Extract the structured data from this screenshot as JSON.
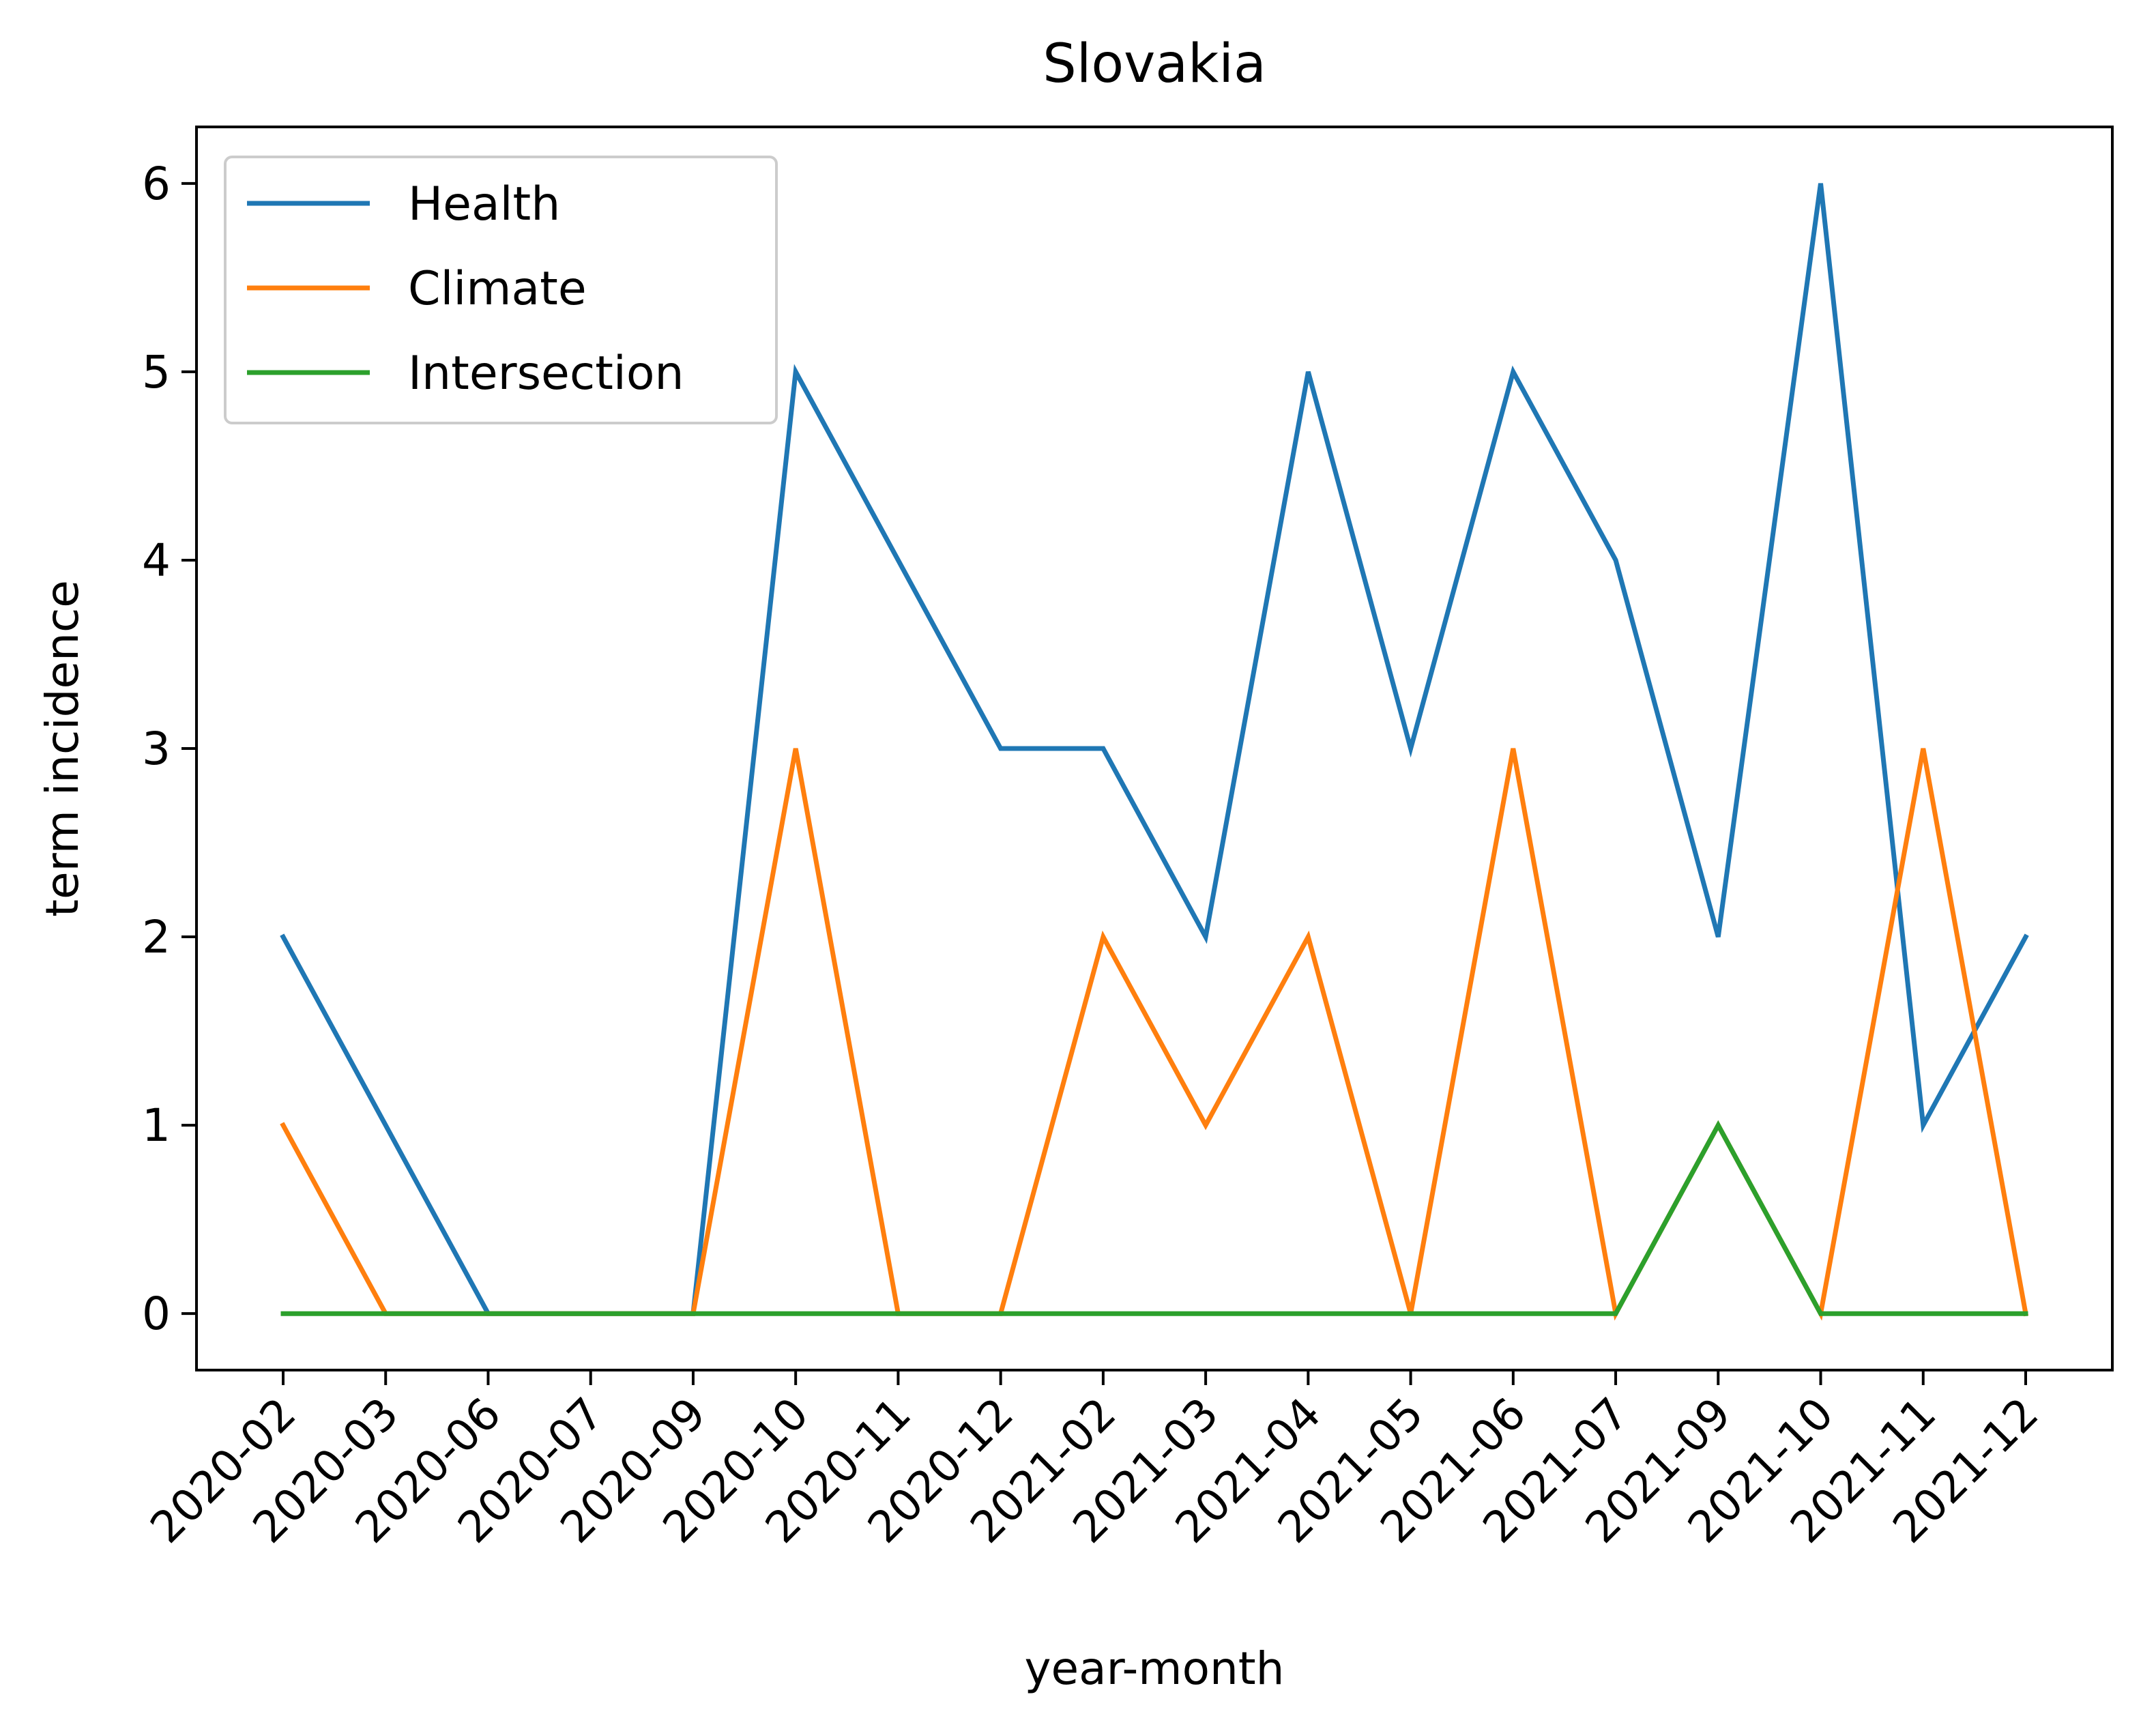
{
  "chart_data": {
    "type": "line",
    "title": "Slovakia",
    "xlabel": "year-month",
    "ylabel": "term incidence",
    "categories": [
      "2020-02",
      "2020-03",
      "2020-06",
      "2020-07",
      "2020-09",
      "2020-10",
      "2020-11",
      "2020-12",
      "2021-02",
      "2021-03",
      "2021-04",
      "2021-05",
      "2021-06",
      "2021-07",
      "2021-09",
      "2021-10",
      "2021-11",
      "2021-12"
    ],
    "yticks": [
      0,
      1,
      2,
      3,
      4,
      5,
      6
    ],
    "ylim": [
      -0.3,
      6.3
    ],
    "grid": false,
    "legend_position": "top-left",
    "series": [
      {
        "name": "Health",
        "color": "#1f77b4",
        "values": [
          2,
          1,
          0,
          0,
          0,
          5,
          4,
          3,
          3,
          2,
          5,
          3,
          5,
          4,
          2,
          6,
          1,
          2
        ]
      },
      {
        "name": "Climate",
        "color": "#ff7f0e",
        "values": [
          1,
          0,
          0,
          0,
          0,
          3,
          0,
          0,
          2,
          1,
          2,
          0,
          3,
          0,
          1,
          0,
          3,
          0
        ]
      },
      {
        "name": "Intersection",
        "color": "#2ca02c",
        "values": [
          0,
          0,
          0,
          0,
          0,
          0,
          0,
          0,
          0,
          0,
          0,
          0,
          0,
          0,
          1,
          0,
          0,
          0
        ]
      }
    ]
  }
}
